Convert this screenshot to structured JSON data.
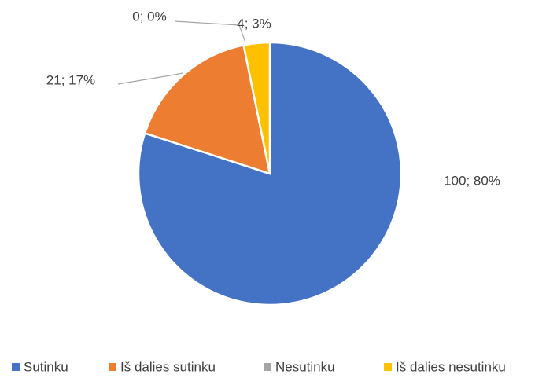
{
  "chart_data": {
    "type": "pie",
    "categories": [
      "Sutinku",
      "Iš dalies sutinku",
      "Nesutinku",
      "Iš dalies nesutinku"
    ],
    "values": [
      100,
      21,
      0,
      4
    ],
    "value_labels": [
      "100; 80%",
      "21; 17%",
      "0; 0%",
      "4; 3%"
    ],
    "colors": [
      "#4472c4",
      "#ed7d31",
      "#a5a5a5",
      "#ffc000"
    ],
    "legend": "bottom"
  }
}
